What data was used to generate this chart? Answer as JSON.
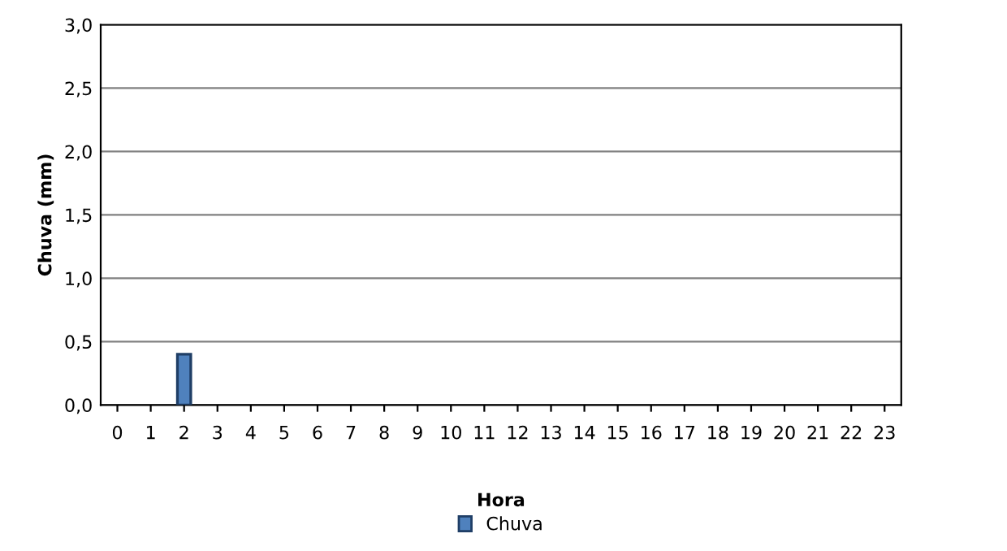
{
  "chart_data": {
    "type": "bar",
    "xlabel": "Hora",
    "ylabel": "Chuva (mm)",
    "categories": [
      "0",
      "1",
      "2",
      "3",
      "4",
      "5",
      "6",
      "7",
      "8",
      "9",
      "10",
      "11",
      "12",
      "13",
      "14",
      "15",
      "16",
      "17",
      "18",
      "19",
      "20",
      "21",
      "22",
      "23"
    ],
    "series": [
      {
        "name": "Chuva",
        "color": "#4f81bd",
        "values": [
          0,
          0,
          0.4,
          0,
          0,
          0,
          0,
          0,
          0,
          0,
          0,
          0,
          0,
          0,
          0,
          0,
          0,
          0,
          0,
          0,
          0,
          0,
          0,
          0
        ]
      }
    ],
    "ylim": [
      0,
      3
    ],
    "yticks": [
      {
        "value": 0,
        "label": "0,0"
      },
      {
        "value": 0.5,
        "label": "0,5"
      },
      {
        "value": 1,
        "label": "1,0"
      },
      {
        "value": 1.5,
        "label": "1,5"
      },
      {
        "value": 2,
        "label": "2,0"
      },
      {
        "value": 2.5,
        "label": "2,5"
      },
      {
        "value": 3,
        "label": "3,0"
      }
    ],
    "grid": "y",
    "legend": "bottom"
  }
}
